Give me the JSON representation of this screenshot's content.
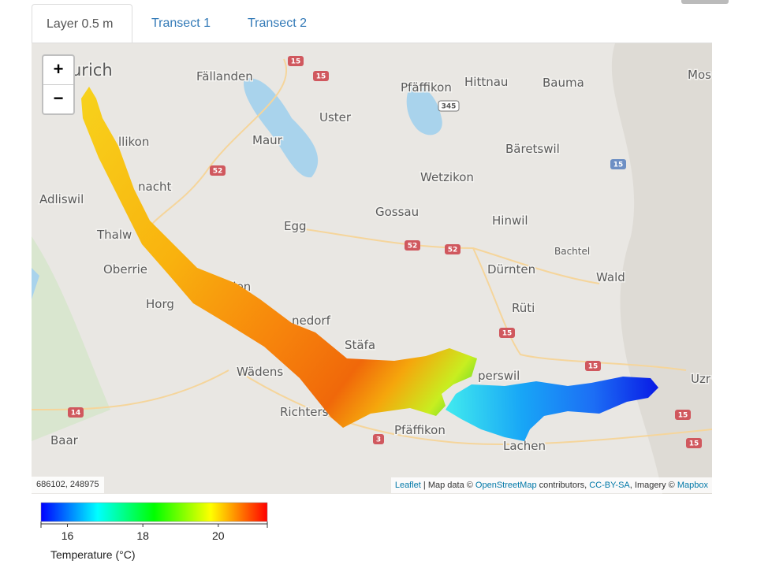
{
  "tabs": [
    "Layer 0.5 m",
    "Transect 1",
    "Transect 2"
  ],
  "map": {
    "zoom_in": "+",
    "zoom_out": "−",
    "places": [
      "urich",
      "Fällanden",
      "Pfäffikon",
      "Hittnau",
      "Bauma",
      "Mos",
      "Uster",
      "Maur",
      "Bäretswil",
      "llikon",
      "Wetzikon",
      "Adliswil",
      "nacht",
      "Gossau",
      "Hinwil",
      "Egg",
      "Thalw",
      "Bachtel",
      "Oberrie",
      "Dürnten",
      "Wald",
      "eilen",
      "Horg",
      "Rüti",
      "nedorf",
      "Stäfa",
      "perswil",
      "Wädens",
      "Uzr",
      "Richters",
      "Pfäffikon",
      "Lachen",
      "Baar"
    ],
    "road_shields": [
      "15",
      "15",
      "345",
      "52",
      "15",
      "52",
      "52",
      "15",
      "15",
      "14",
      "3",
      "15",
      "15"
    ],
    "coordinates": "686102, 248975",
    "attribution": [
      "Leaflet",
      " | Map data © ",
      "OpenStreetMap",
      " contributors, ",
      "CC-BY-SA",
      ", Imagery © ",
      "Mapbox"
    ]
  },
  "colorbar": {
    "title": "Temperature (°C)",
    "range": [
      15.3,
      21.3
    ],
    "ticks": [
      16,
      18,
      20
    ],
    "colors": [
      "#0000ff",
      "#00ffff",
      "#00ff00",
      "#ffff00",
      "#ff0000"
    ]
  }
}
